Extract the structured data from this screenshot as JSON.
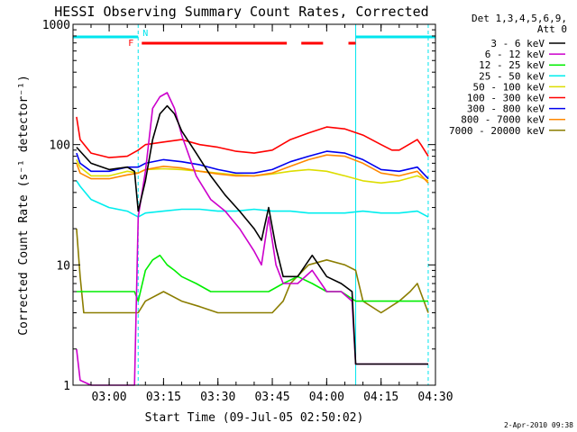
{
  "chart_data": {
    "type": "line",
    "title": "HESSI Observing Summary Count Rates, Corrected",
    "xlabel": "Start Time (09-Jul-05 02:50:02)",
    "ylabel": "Corrected Count Rate (s⁻¹ detector⁻¹)",
    "yscale": "log",
    "ylim": [
      1,
      1000
    ],
    "xlim": [
      "02:50",
      "04:30"
    ],
    "x_ticks": [
      "03:00",
      "03:15",
      "03:30",
      "03:45",
      "04:00",
      "04:15",
      "04:30"
    ],
    "y_ticks": [
      "1",
      "10",
      "100",
      "1000"
    ],
    "grid": false,
    "legend_position": "right",
    "legend_header": [
      "Det 1,3,4,5,6,9,",
      "Att 0"
    ],
    "flags": [
      {
        "label": "F",
        "color": "#ff0000"
      },
      {
        "label": "N",
        "color": "#00e5ee"
      }
    ],
    "timestamp": "2-Apr-2010 09:38",
    "series": [
      {
        "name": "3 - 6 keV",
        "color": "#000000",
        "x": [
          "02:51",
          "02:55",
          "03:00",
          "03:05",
          "03:07",
          "03:08",
          "03:10",
          "03:12",
          "03:14",
          "03:16",
          "03:18",
          "03:20",
          "03:24",
          "03:28",
          "03:32",
          "03:36",
          "03:40",
          "03:42",
          "03:44",
          "03:46",
          "03:48",
          "03:52",
          "03:56",
          "04:00",
          "04:04",
          "04:07",
          "04:08",
          "04:10",
          "04:15",
          "04:20",
          "04:25",
          "04:28"
        ],
        "y": [
          95,
          70,
          62,
          65,
          60,
          28,
          50,
          110,
          180,
          210,
          180,
          130,
          85,
          55,
          38,
          28,
          20,
          16,
          30,
          14,
          8,
          8,
          12,
          8,
          7,
          6,
          1.5,
          1.5,
          1.5,
          1.5,
          1.5,
          1.5
        ]
      },
      {
        "name": "6 - 12 keV",
        "color": "#cc00cc",
        "x": [
          "02:51",
          "02:52",
          "02:55",
          "03:00",
          "03:05",
          "03:07",
          "03:08",
          "03:10",
          "03:12",
          "03:14",
          "03:16",
          "03:18",
          "03:20",
          "03:24",
          "03:28",
          "03:32",
          "03:36",
          "03:40",
          "03:42",
          "03:44",
          "03:46",
          "03:48",
          "03:52",
          "03:56",
          "04:00",
          "04:04",
          "04:07",
          "04:08",
          "04:15",
          "04:20",
          "04:25",
          "04:28"
        ],
        "y": [
          2,
          1.1,
          1,
          1,
          1,
          1,
          25,
          60,
          200,
          250,
          270,
          200,
          120,
          55,
          35,
          28,
          20,
          13,
          10,
          25,
          10,
          7,
          7,
          9,
          6,
          6,
          5,
          1.5,
          1.5,
          1.5,
          1.5,
          1.5
        ]
      },
      {
        "name": "12 - 25 keV",
        "color": "#00ee00",
        "x": [
          "02:51",
          "02:55",
          "03:00",
          "03:05",
          "03:07",
          "03:08",
          "03:10",
          "03:12",
          "03:14",
          "03:16",
          "03:18",
          "03:20",
          "03:24",
          "03:28",
          "03:32",
          "03:36",
          "03:40",
          "03:44",
          "03:48",
          "03:52",
          "03:56",
          "04:00",
          "04:04",
          "04:08",
          "04:12",
          "04:16",
          "04:20",
          "04:25",
          "04:28"
        ],
        "y": [
          6,
          6,
          6,
          6,
          6,
          5,
          9,
          11,
          12,
          10,
          9,
          8,
          7,
          6,
          6,
          6,
          6,
          6,
          7,
          8,
          7,
          6,
          6,
          5,
          5,
          5,
          5,
          5,
          5
        ]
      },
      {
        "name": "25 - 50 keV",
        "color": "#00eeee",
        "x": [
          "02:51",
          "02:52",
          "02:55",
          "03:00",
          "03:05",
          "03:08",
          "03:10",
          "03:15",
          "03:20",
          "03:25",
          "03:30",
          "03:35",
          "03:40",
          "03:45",
          "03:50",
          "03:55",
          "04:00",
          "04:05",
          "04:10",
          "04:15",
          "04:20",
          "04:25",
          "04:28"
        ],
        "y": [
          50,
          45,
          35,
          30,
          28,
          25,
          27,
          28,
          29,
          29,
          28,
          28,
          29,
          28,
          28,
          27,
          27,
          27,
          28,
          27,
          27,
          28,
          25
        ]
      },
      {
        "name": "50 - 100 keV",
        "color": "#dddd00",
        "x": [
          "02:51",
          "02:52",
          "02:55",
          "03:00",
          "03:05",
          "03:08",
          "03:10",
          "03:15",
          "03:20",
          "03:25",
          "03:30",
          "03:35",
          "03:40",
          "03:45",
          "03:50",
          "03:55",
          "04:00",
          "04:05",
          "04:10",
          "04:15",
          "04:20",
          "04:25",
          "04:28"
        ],
        "y": [
          75,
          65,
          55,
          55,
          60,
          58,
          62,
          63,
          62,
          60,
          58,
          56,
          55,
          57,
          60,
          62,
          60,
          55,
          50,
          48,
          50,
          55,
          50
        ]
      },
      {
        "name": "100 - 300 keV",
        "color": "#ff0000",
        "x": [
          "02:51",
          "02:52",
          "02:55",
          "03:00",
          "03:05",
          "03:08",
          "03:10",
          "03:15",
          "03:20",
          "03:25",
          "03:30",
          "03:35",
          "03:40",
          "03:45",
          "03:50",
          "03:55",
          "04:00",
          "04:05",
          "04:10",
          "04:15",
          "04:18",
          "04:20",
          "04:25",
          "04:26",
          "04:28"
        ],
        "y": [
          170,
          110,
          85,
          78,
          80,
          90,
          100,
          105,
          110,
          100,
          95,
          88,
          85,
          90,
          110,
          125,
          140,
          135,
          120,
          100,
          90,
          90,
          110,
          100,
          80
        ]
      },
      {
        "name": "300 - 800 keV",
        "color": "#0000ee",
        "x": [
          "02:51",
          "02:52",
          "02:55",
          "03:00",
          "03:05",
          "03:08",
          "03:10",
          "03:15",
          "03:20",
          "03:25",
          "03:30",
          "03:35",
          "03:40",
          "03:45",
          "03:50",
          "03:55",
          "04:00",
          "04:05",
          "04:10",
          "04:15",
          "04:20",
          "04:25",
          "04:28"
        ],
        "y": [
          85,
          70,
          60,
          60,
          65,
          65,
          70,
          75,
          72,
          68,
          62,
          58,
          58,
          62,
          72,
          80,
          88,
          85,
          75,
          62,
          60,
          65,
          52
        ]
      },
      {
        "name": "800 - 7000 keV",
        "color": "#ff8800",
        "x": [
          "02:51",
          "02:52",
          "02:55",
          "03:00",
          "03:05",
          "03:08",
          "03:10",
          "03:15",
          "03:20",
          "03:25",
          "03:30",
          "03:35",
          "03:40",
          "03:45",
          "03:50",
          "03:55",
          "04:00",
          "04:05",
          "04:10",
          "04:15",
          "04:20",
          "04:25",
          "04:28"
        ],
        "y": [
          70,
          58,
          52,
          52,
          56,
          58,
          62,
          66,
          64,
          60,
          57,
          55,
          55,
          58,
          66,
          75,
          82,
          80,
          70,
          58,
          55,
          60,
          48
        ]
      },
      {
        "name": "7000 - 20000 keV",
        "color": "#8b7d00",
        "x": [
          "02:51",
          "02:52",
          "02:53",
          "02:55",
          "03:00",
          "03:05",
          "03:08",
          "03:10",
          "03:15",
          "03:20",
          "03:25",
          "03:30",
          "03:35",
          "03:40",
          "03:45",
          "03:48",
          "03:50",
          "03:55",
          "04:00",
          "04:05",
          "04:08",
          "04:10",
          "04:15",
          "04:20",
          "04:23",
          "04:25",
          "04:28"
        ],
        "y": [
          20,
          8,
          4,
          4,
          4,
          4,
          4,
          5,
          6,
          5,
          4.5,
          4,
          4,
          4,
          4,
          5,
          7,
          10,
          11,
          10,
          9,
          5,
          4,
          5,
          6,
          7,
          4
        ]
      }
    ]
  }
}
